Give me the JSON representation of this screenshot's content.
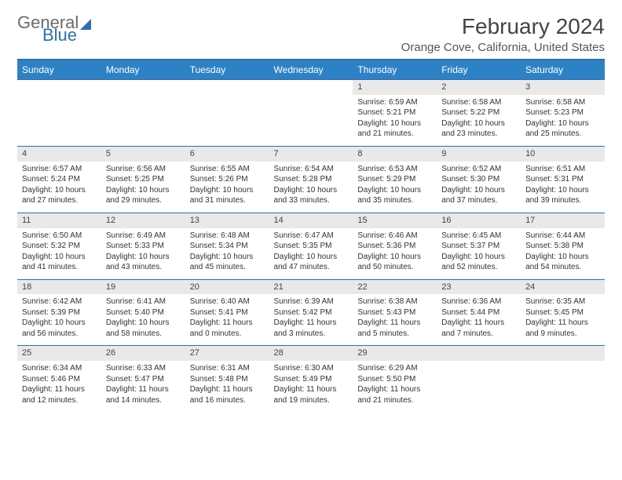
{
  "brand": {
    "name1": "General",
    "name2": "Blue"
  },
  "title": "February 2024",
  "location": "Orange Cove, California, United States",
  "headers": [
    "Sunday",
    "Monday",
    "Tuesday",
    "Wednesday",
    "Thursday",
    "Friday",
    "Saturday"
  ],
  "colors": {
    "header_bg": "#2d82c6",
    "border": "#2d6fb0",
    "daynum_bg": "#e9e9e9"
  },
  "weeks": [
    [
      null,
      null,
      null,
      null,
      {
        "n": "1",
        "sr": "Sunrise: 6:59 AM",
        "ss": "Sunset: 5:21 PM",
        "d1": "Daylight: 10 hours",
        "d2": "and 21 minutes."
      },
      {
        "n": "2",
        "sr": "Sunrise: 6:58 AM",
        "ss": "Sunset: 5:22 PM",
        "d1": "Daylight: 10 hours",
        "d2": "and 23 minutes."
      },
      {
        "n": "3",
        "sr": "Sunrise: 6:58 AM",
        "ss": "Sunset: 5:23 PM",
        "d1": "Daylight: 10 hours",
        "d2": "and 25 minutes."
      }
    ],
    [
      {
        "n": "4",
        "sr": "Sunrise: 6:57 AM",
        "ss": "Sunset: 5:24 PM",
        "d1": "Daylight: 10 hours",
        "d2": "and 27 minutes."
      },
      {
        "n": "5",
        "sr": "Sunrise: 6:56 AM",
        "ss": "Sunset: 5:25 PM",
        "d1": "Daylight: 10 hours",
        "d2": "and 29 minutes."
      },
      {
        "n": "6",
        "sr": "Sunrise: 6:55 AM",
        "ss": "Sunset: 5:26 PM",
        "d1": "Daylight: 10 hours",
        "d2": "and 31 minutes."
      },
      {
        "n": "7",
        "sr": "Sunrise: 6:54 AM",
        "ss": "Sunset: 5:28 PM",
        "d1": "Daylight: 10 hours",
        "d2": "and 33 minutes."
      },
      {
        "n": "8",
        "sr": "Sunrise: 6:53 AM",
        "ss": "Sunset: 5:29 PM",
        "d1": "Daylight: 10 hours",
        "d2": "and 35 minutes."
      },
      {
        "n": "9",
        "sr": "Sunrise: 6:52 AM",
        "ss": "Sunset: 5:30 PM",
        "d1": "Daylight: 10 hours",
        "d2": "and 37 minutes."
      },
      {
        "n": "10",
        "sr": "Sunrise: 6:51 AM",
        "ss": "Sunset: 5:31 PM",
        "d1": "Daylight: 10 hours",
        "d2": "and 39 minutes."
      }
    ],
    [
      {
        "n": "11",
        "sr": "Sunrise: 6:50 AM",
        "ss": "Sunset: 5:32 PM",
        "d1": "Daylight: 10 hours",
        "d2": "and 41 minutes."
      },
      {
        "n": "12",
        "sr": "Sunrise: 6:49 AM",
        "ss": "Sunset: 5:33 PM",
        "d1": "Daylight: 10 hours",
        "d2": "and 43 minutes."
      },
      {
        "n": "13",
        "sr": "Sunrise: 6:48 AM",
        "ss": "Sunset: 5:34 PM",
        "d1": "Daylight: 10 hours",
        "d2": "and 45 minutes."
      },
      {
        "n": "14",
        "sr": "Sunrise: 6:47 AM",
        "ss": "Sunset: 5:35 PM",
        "d1": "Daylight: 10 hours",
        "d2": "and 47 minutes."
      },
      {
        "n": "15",
        "sr": "Sunrise: 6:46 AM",
        "ss": "Sunset: 5:36 PM",
        "d1": "Daylight: 10 hours",
        "d2": "and 50 minutes."
      },
      {
        "n": "16",
        "sr": "Sunrise: 6:45 AM",
        "ss": "Sunset: 5:37 PM",
        "d1": "Daylight: 10 hours",
        "d2": "and 52 minutes."
      },
      {
        "n": "17",
        "sr": "Sunrise: 6:44 AM",
        "ss": "Sunset: 5:38 PM",
        "d1": "Daylight: 10 hours",
        "d2": "and 54 minutes."
      }
    ],
    [
      {
        "n": "18",
        "sr": "Sunrise: 6:42 AM",
        "ss": "Sunset: 5:39 PM",
        "d1": "Daylight: 10 hours",
        "d2": "and 56 minutes."
      },
      {
        "n": "19",
        "sr": "Sunrise: 6:41 AM",
        "ss": "Sunset: 5:40 PM",
        "d1": "Daylight: 10 hours",
        "d2": "and 58 minutes."
      },
      {
        "n": "20",
        "sr": "Sunrise: 6:40 AM",
        "ss": "Sunset: 5:41 PM",
        "d1": "Daylight: 11 hours",
        "d2": "and 0 minutes."
      },
      {
        "n": "21",
        "sr": "Sunrise: 6:39 AM",
        "ss": "Sunset: 5:42 PM",
        "d1": "Daylight: 11 hours",
        "d2": "and 3 minutes."
      },
      {
        "n": "22",
        "sr": "Sunrise: 6:38 AM",
        "ss": "Sunset: 5:43 PM",
        "d1": "Daylight: 11 hours",
        "d2": "and 5 minutes."
      },
      {
        "n": "23",
        "sr": "Sunrise: 6:36 AM",
        "ss": "Sunset: 5:44 PM",
        "d1": "Daylight: 11 hours",
        "d2": "and 7 minutes."
      },
      {
        "n": "24",
        "sr": "Sunrise: 6:35 AM",
        "ss": "Sunset: 5:45 PM",
        "d1": "Daylight: 11 hours",
        "d2": "and 9 minutes."
      }
    ],
    [
      {
        "n": "25",
        "sr": "Sunrise: 6:34 AM",
        "ss": "Sunset: 5:46 PM",
        "d1": "Daylight: 11 hours",
        "d2": "and 12 minutes."
      },
      {
        "n": "26",
        "sr": "Sunrise: 6:33 AM",
        "ss": "Sunset: 5:47 PM",
        "d1": "Daylight: 11 hours",
        "d2": "and 14 minutes."
      },
      {
        "n": "27",
        "sr": "Sunrise: 6:31 AM",
        "ss": "Sunset: 5:48 PM",
        "d1": "Daylight: 11 hours",
        "d2": "and 16 minutes."
      },
      {
        "n": "28",
        "sr": "Sunrise: 6:30 AM",
        "ss": "Sunset: 5:49 PM",
        "d1": "Daylight: 11 hours",
        "d2": "and 19 minutes."
      },
      {
        "n": "29",
        "sr": "Sunrise: 6:29 AM",
        "ss": "Sunset: 5:50 PM",
        "d1": "Daylight: 11 hours",
        "d2": "and 21 minutes."
      },
      null,
      null
    ]
  ]
}
